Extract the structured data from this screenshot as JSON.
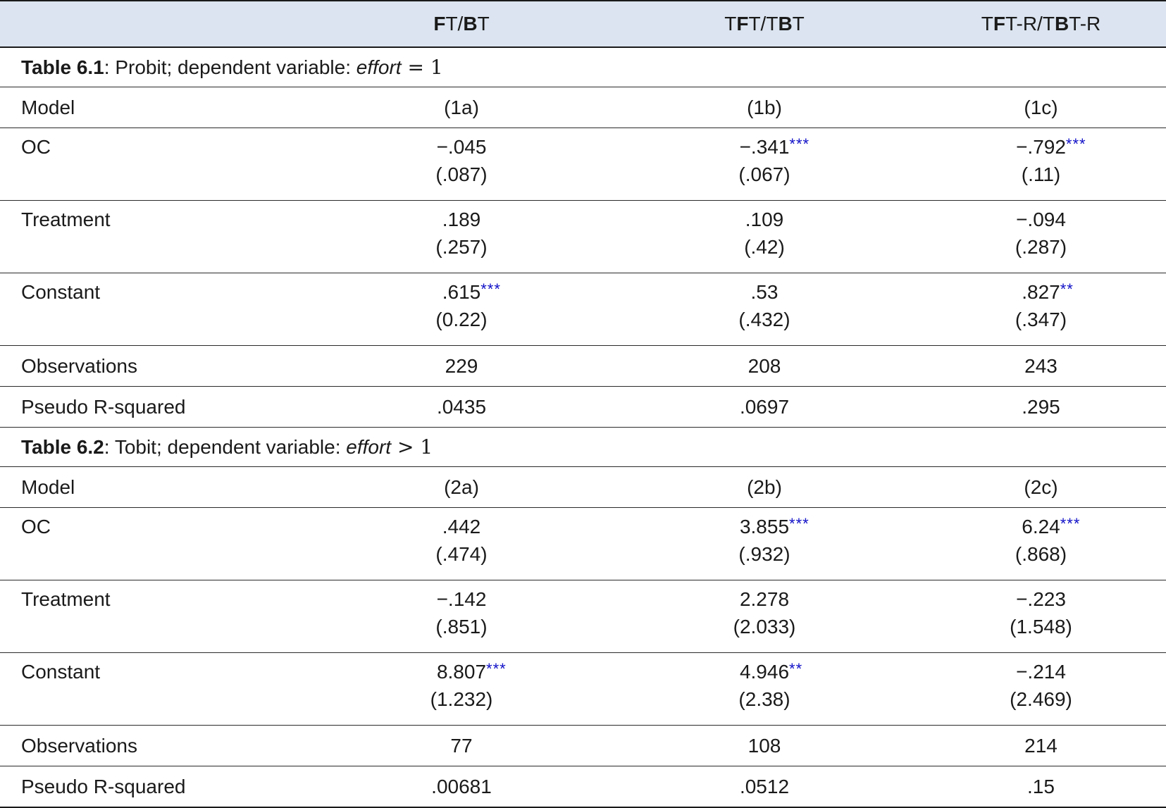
{
  "columns": {
    "c1": {
      "pre": "",
      "b1": "F",
      "mid": "T/",
      "b2": "B",
      "post": "T"
    },
    "c2": {
      "pre": "T",
      "b1": "F",
      "mid": "T/T",
      "b2": "B",
      "post": "T"
    },
    "c3": {
      "pre": "T",
      "b1": "F",
      "mid": "T-R/T",
      "b2": "B",
      "post": "T-R"
    }
  },
  "table1": {
    "section": {
      "bold": "Table 6.1",
      "rest": ": Probit; dependent variable: ",
      "ital": "effort",
      "rel": " = 1"
    },
    "model": {
      "label": "Model",
      "v1": "(1a)",
      "v2": "(1b)",
      "v3": "(1c)"
    },
    "oc": {
      "label": "OC",
      "v1": "−.045",
      "s1": "",
      "se1": "(.087)",
      "v2": "−.341",
      "s2": "***",
      "se2": "(.067)",
      "v3": "−.792",
      "s3": "***",
      "se3": "(.11)"
    },
    "treatment": {
      "label": "Treatment",
      "v1": ".189",
      "s1": "",
      "se1": "(.257)",
      "v2": ".109",
      "s2": "",
      "se2": "(.42)",
      "v3": "−.094",
      "s3": "",
      "se3": "(.287)"
    },
    "constant": {
      "label": "Constant",
      "v1": ".615",
      "s1": "***",
      "se1": "(0.22)",
      "v2": ".53",
      "s2": "",
      "se2": "(.432)",
      "v3": ".827",
      "s3": "**",
      "se3": "(.347)"
    },
    "observations": {
      "label": "Observations",
      "v1": "229",
      "v2": "208",
      "v3": "243"
    },
    "pseudo": {
      "label": "Pseudo R-squared",
      "v1": ".0435",
      "v2": ".0697",
      "v3": ".295"
    }
  },
  "table2": {
    "section": {
      "bold": "Table 6.2",
      "rest": ": Tobit; dependent variable: ",
      "ital": "effort",
      "rel": " > 1"
    },
    "model": {
      "label": "Model",
      "v1": "(2a)",
      "v2": "(2b)",
      "v3": "(2c)"
    },
    "oc": {
      "label": "OC",
      "v1": ".442",
      "s1": "",
      "se1": "(.474)",
      "v2": "3.855",
      "s2": "***",
      "se2": "(.932)",
      "v3": "6.24",
      "s3": "***",
      "se3": "(.868)"
    },
    "treatment": {
      "label": "Treatment",
      "v1": "−.142",
      "s1": "",
      "se1": "(.851)",
      "v2": "2.278",
      "s2": "",
      "se2": "(2.033)",
      "v3": "−.223",
      "s3": "",
      "se3": "(1.548)"
    },
    "constant": {
      "label": "Constant",
      "v1": "8.807",
      "s1": "***",
      "se1": "(1.232)",
      "v2": "4.946",
      "s2": "**",
      "se2": "(2.38)",
      "v3": "−.214",
      "s3": "",
      "se3": "(2.469)"
    },
    "observations": {
      "label": "Observations",
      "v1": "77",
      "v2": "108",
      "v3": "214"
    },
    "pseudo": {
      "label": "Pseudo R-squared",
      "v1": ".00681",
      "v2": ".0512",
      "v3": ".15"
    }
  },
  "colors": {
    "header_bg": "#dbe4f0",
    "stars": "#1010c8",
    "rule": "#1a1a1a"
  }
}
